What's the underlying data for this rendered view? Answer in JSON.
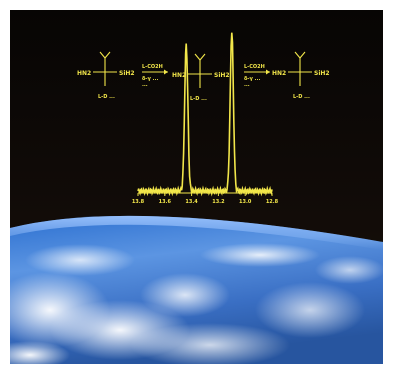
{
  "colors": {
    "background": "#ffffff",
    "space": "#0b0806",
    "trace": "#f2e64a",
    "earth_blue": "#3f7fd6",
    "cloud": "#eef4ff"
  },
  "molecules": {
    "left": {
      "sub_left": "HN2",
      "sub_right": "SiH2",
      "caption": "L-D ..."
    },
    "middle": {
      "sub_left": "HN2",
      "sub_right": "SiH2",
      "caption": "L-D ..."
    },
    "right": {
      "sub_left": "HN2",
      "sub_right": "SiH2",
      "caption": "L-D ..."
    }
  },
  "arrows": {
    "left": {
      "top": "L-CO2H",
      "bottom1": "δ-γ ...",
      "bottom2": "..."
    },
    "right": {
      "top": "L-CO2H",
      "bottom1": "δ-γ ...",
      "bottom2": "..."
    }
  },
  "spectrum": {
    "peaks": [
      {
        "position": 0.36,
        "height": 0.92
      },
      {
        "position": 0.7,
        "height": 1.0
      }
    ],
    "tick_labels": [
      "13.8",
      "13.6",
      "13.4",
      "13.2",
      "13.0",
      "12.8"
    ]
  }
}
